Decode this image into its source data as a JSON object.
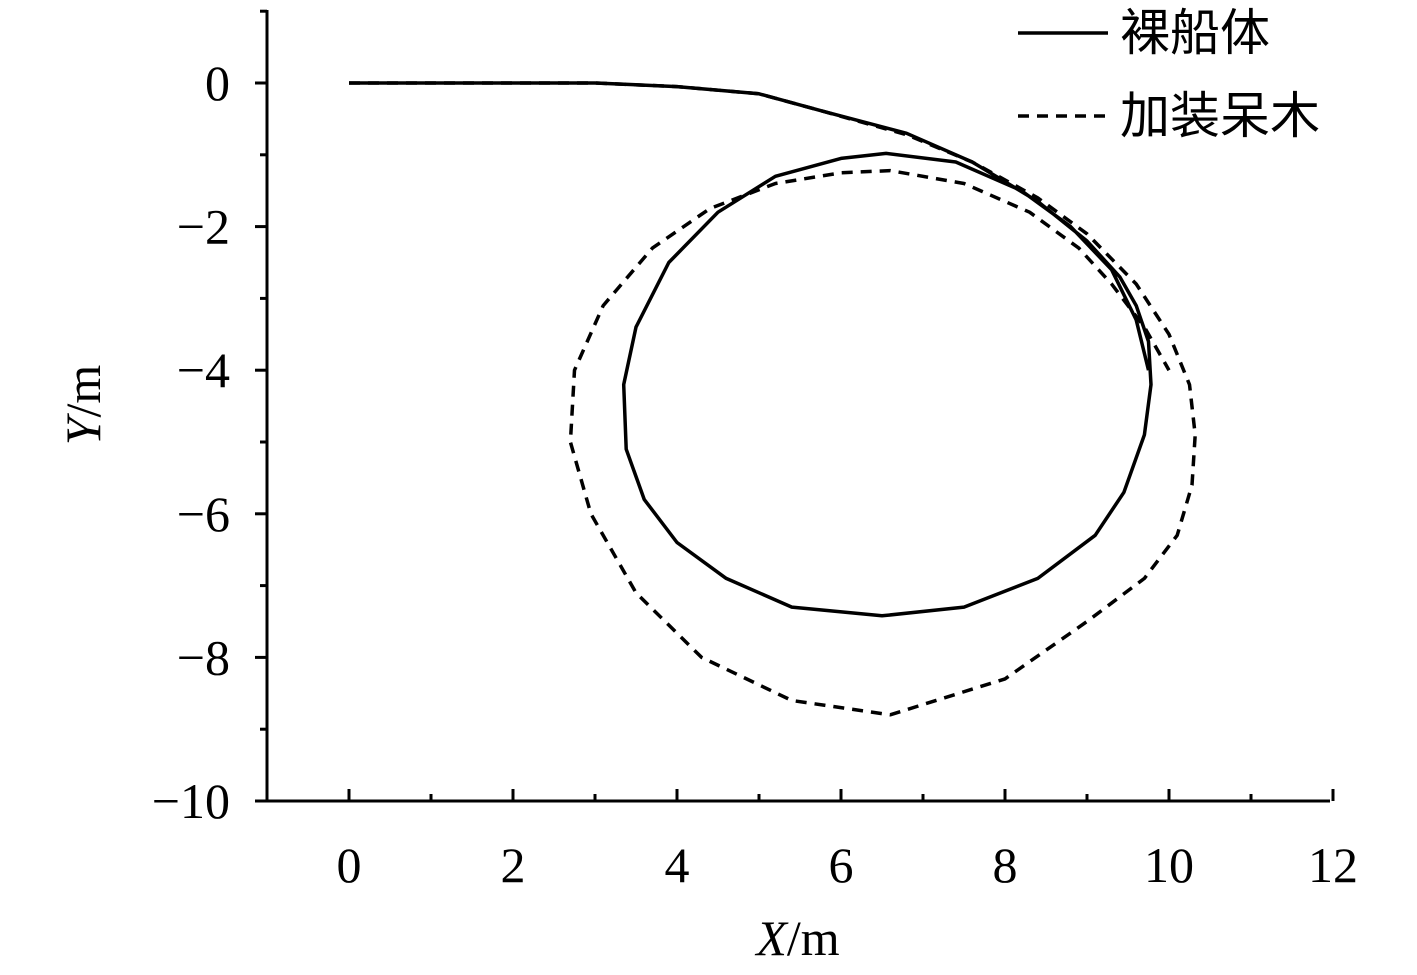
{
  "chart_data": {
    "type": "line",
    "xlabel": {
      "var": "X",
      "unit": "/m"
    },
    "ylabel": {
      "var": "Y",
      "unit": "/m"
    },
    "xlim": [
      -1,
      12
    ],
    "ylim": [
      -10,
      1
    ],
    "xticks": [
      0,
      2,
      4,
      6,
      8,
      10,
      12
    ],
    "yticks": [
      0,
      -2,
      -4,
      -6,
      -8,
      -10
    ],
    "xtick_labels": [
      "0",
      "2",
      "4",
      "6",
      "8",
      "10",
      "12"
    ],
    "ytick_labels": [
      "0",
      "−2",
      "−4",
      "−6",
      "−8",
      "−10"
    ],
    "grid": false,
    "legend_position": "top-right",
    "series": [
      {
        "name": "裸船体",
        "style": "solid",
        "color": "#000000",
        "x": [
          0,
          1,
          2,
          3,
          4,
          5,
          5.8,
          6.8,
          7.6,
          8.4,
          9.0,
          9.4,
          9.6,
          9.75,
          9.78,
          9.7,
          9.45,
          9.1,
          8.4,
          7.5,
          6.5,
          5.4,
          4.6,
          4.0,
          3.6,
          3.38,
          3.35,
          3.5,
          3.9,
          4.5,
          5.2,
          6.0,
          6.55,
          7.4,
          8.2,
          8.8,
          9.3,
          9.6,
          9.75
        ],
        "y": [
          0,
          0,
          0,
          0,
          -0.05,
          -0.15,
          -0.4,
          -0.7,
          -1.1,
          -1.65,
          -2.2,
          -2.7,
          -3.1,
          -3.6,
          -4.2,
          -4.9,
          -5.7,
          -6.3,
          -6.9,
          -7.3,
          -7.42,
          -7.3,
          -6.9,
          -6.4,
          -5.8,
          -5.1,
          -4.2,
          -3.4,
          -2.5,
          -1.8,
          -1.3,
          -1.05,
          -0.98,
          -1.1,
          -1.5,
          -2.0,
          -2.6,
          -3.3,
          -4.0
        ]
      },
      {
        "name": "加装呆木",
        "style": "dashed",
        "color": "#000000",
        "x": [
          0,
          1,
          2,
          3,
          4,
          5,
          5.8,
          6.8,
          7.6,
          8.4,
          9.0,
          9.6,
          10.0,
          10.25,
          10.32,
          10.28,
          10.1,
          9.7,
          9.0,
          8.0,
          6.6,
          5.4,
          4.3,
          3.5,
          2.95,
          2.7,
          2.75,
          3.1,
          3.7,
          4.4,
          5.2,
          6.0,
          6.6,
          7.5,
          8.3,
          8.9,
          9.3,
          9.7,
          10.0
        ],
        "y": [
          0,
          0,
          0,
          0,
          -0.05,
          -0.15,
          -0.4,
          -0.72,
          -1.1,
          -1.6,
          -2.1,
          -2.8,
          -3.5,
          -4.2,
          -4.9,
          -5.6,
          -6.3,
          -6.9,
          -7.5,
          -8.3,
          -8.8,
          -8.6,
          -8.0,
          -7.1,
          -6.0,
          -5.0,
          -4.0,
          -3.1,
          -2.3,
          -1.75,
          -1.4,
          -1.25,
          -1.22,
          -1.4,
          -1.8,
          -2.3,
          -2.8,
          -3.4,
          -4.0
        ]
      }
    ]
  }
}
